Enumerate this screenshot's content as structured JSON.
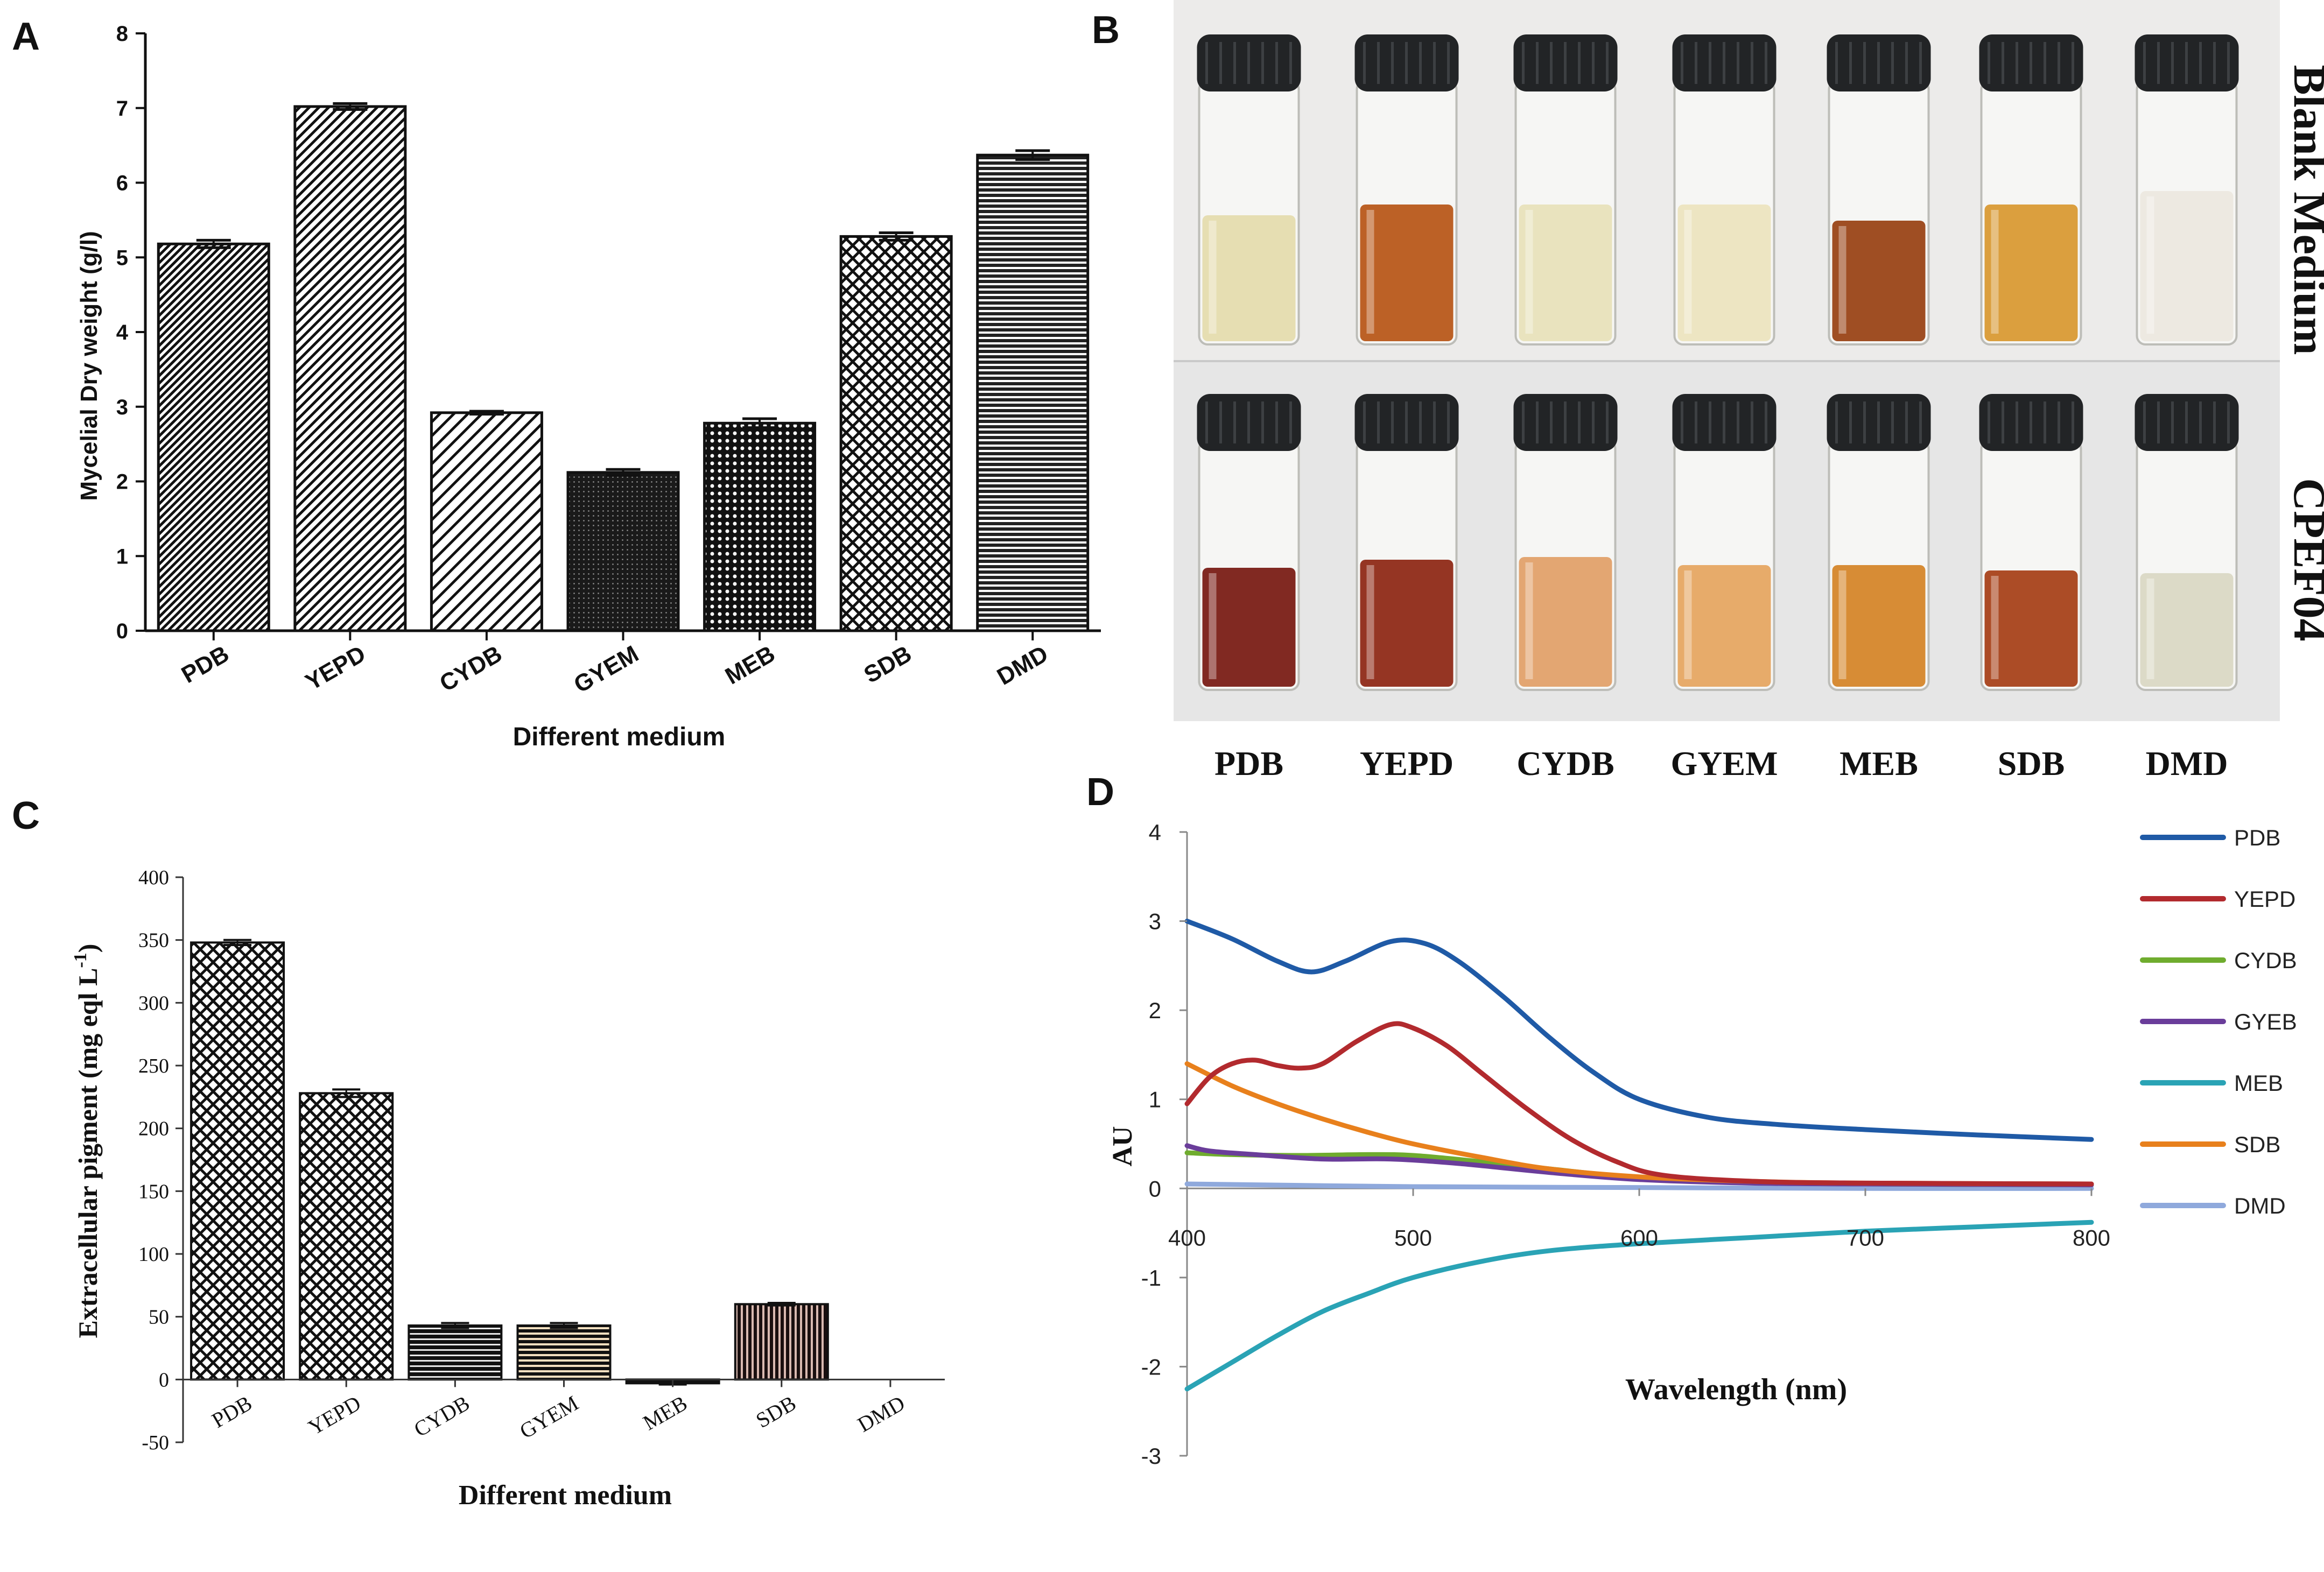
{
  "panels": {
    "A": {
      "label": "A"
    },
    "B": {
      "label": "B"
    },
    "C": {
      "label": "C"
    },
    "D": {
      "label": "D"
    }
  },
  "colors": {
    "pdb": "#1f5aa6",
    "yepd": "#b22a2e",
    "cydb": "#6fac2e",
    "gyeb": "#6a3d9a",
    "meb": "#2aa3b5",
    "sdb": "#e8801c",
    "dmd": "#8fa9dc"
  },
  "chart_data": [
    {
      "id": "A",
      "type": "bar",
      "title": "",
      "xlabel": "Different medium",
      "ylabel": "Mycelial Dry weight (g/l)",
      "categories": [
        "PDB",
        "YEPD",
        "CYDB",
        "GYEM",
        "MEB",
        "SDB",
        "DMD"
      ],
      "values": [
        5.18,
        7.02,
        2.92,
        2.12,
        2.78,
        5.28,
        6.37
      ],
      "errors": [
        0.05,
        0.04,
        0.02,
        0.04,
        0.06,
        0.05,
        0.06
      ],
      "patterns": [
        "diag-down-dense",
        "diag-down-wide",
        "diag-down-medium",
        "dense-dots",
        "dots",
        "crosshatch",
        "horizontal"
      ],
      "ylim": [
        0,
        8
      ],
      "yticks": [
        "0",
        "1",
        "2",
        "3",
        "4",
        "5",
        "6",
        "7",
        "8"
      ]
    },
    {
      "id": "B",
      "type": "photo",
      "row_labels": [
        "Blank Medium",
        "CPEF04"
      ],
      "categories": [
        "PDB",
        "YEPD",
        "CYDB",
        "GYEM",
        "MEB",
        "SDB",
        "DMD"
      ],
      "blank_colors": [
        "#e5dcae",
        "#b8581a",
        "#e8e1ba",
        "#ece4bf",
        "#9a4417",
        "#d99a34",
        "#ece8df"
      ],
      "cpef_colors": [
        "#7a1d16",
        "#8f2a17",
        "#e2a16a",
        "#e6a762",
        "#d5862a",
        "#a8421a",
        "#dad8c4"
      ]
    },
    {
      "id": "C",
      "type": "bar",
      "title": "",
      "xlabel": "Different medium",
      "ylabel": "Extracellular pigment (mg eql L",
      "ylabel_sup": "-1",
      "ylabel_close": ")",
      "categories": [
        "PDB",
        "YEPD",
        "CYDB",
        "GYEM",
        "MEB",
        "SDB",
        "DMD"
      ],
      "values": [
        348,
        228,
        43,
        43,
        -3,
        60,
        0
      ],
      "errors": [
        2,
        3,
        2,
        2,
        1,
        1,
        0
      ],
      "patterns": [
        "crosshatch",
        "crosshatch",
        "horizontal-dark",
        "horizontal-beige",
        "plain-dark",
        "vertical-brown",
        "none"
      ],
      "ylim": [
        -50,
        400
      ],
      "yticks": [
        "-50",
        "0",
        "50",
        "100",
        "150",
        "200",
        "250",
        "300",
        "350",
        "400"
      ]
    },
    {
      "id": "D",
      "type": "line",
      "title": "",
      "xlabel": "Wavelength  (nm)",
      "ylabel": "AU",
      "xlim": [
        400,
        800
      ],
      "ylim": [
        -3,
        4
      ],
      "xticks": [
        "400",
        "500",
        "600",
        "700",
        "800"
      ],
      "yticks": [
        "-3",
        "-2",
        "-1",
        "0",
        "1",
        "2",
        "3",
        "4"
      ],
      "series": [
        {
          "name": "PDB",
          "color": "#1f5aa6",
          "x": [
            400,
            420,
            440,
            455,
            470,
            490,
            505,
            520,
            540,
            560,
            580,
            600,
            630,
            660,
            700,
            750,
            800
          ],
          "y": [
            3.0,
            2.8,
            2.55,
            2.43,
            2.55,
            2.77,
            2.75,
            2.55,
            2.15,
            1.7,
            1.3,
            1.0,
            0.8,
            0.72,
            0.66,
            0.6,
            0.55
          ]
        },
        {
          "name": "YEPD",
          "color": "#b22a2e",
          "x": [
            400,
            410,
            420,
            430,
            440,
            450,
            460,
            475,
            490,
            500,
            515,
            530,
            550,
            570,
            590,
            610,
            650,
            700,
            800
          ],
          "y": [
            0.95,
            1.25,
            1.4,
            1.44,
            1.38,
            1.35,
            1.4,
            1.65,
            1.84,
            1.8,
            1.6,
            1.3,
            0.9,
            0.55,
            0.3,
            0.15,
            0.08,
            0.06,
            0.05
          ]
        },
        {
          "name": "CYDB",
          "color": "#6fac2e",
          "x": [
            400,
            420,
            450,
            480,
            500,
            530,
            560,
            600,
            650,
            700,
            800
          ],
          "y": [
            0.4,
            0.38,
            0.37,
            0.38,
            0.37,
            0.3,
            0.22,
            0.12,
            0.07,
            0.05,
            0.04
          ]
        },
        {
          "name": "GYEB",
          "color": "#6a3d9a",
          "x": [
            400,
            410,
            430,
            460,
            490,
            520,
            560,
            600,
            650,
            700,
            800
          ],
          "y": [
            0.48,
            0.42,
            0.38,
            0.33,
            0.33,
            0.28,
            0.18,
            0.1,
            0.06,
            0.05,
            0.04
          ]
        },
        {
          "name": "MEB",
          "color": "#2aa3b5",
          "x": [
            400,
            420,
            440,
            460,
            480,
            500,
            530,
            560,
            600,
            650,
            700,
            750,
            800
          ],
          "y": [
            -2.25,
            -1.95,
            -1.65,
            -1.38,
            -1.18,
            -1.0,
            -0.82,
            -0.7,
            -0.62,
            -0.55,
            -0.48,
            -0.43,
            -0.38
          ]
        },
        {
          "name": "SDB",
          "color": "#e8801c",
          "x": [
            400,
            420,
            440,
            460,
            480,
            500,
            530,
            560,
            600,
            650,
            700,
            800
          ],
          "y": [
            1.4,
            1.15,
            0.95,
            0.78,
            0.63,
            0.5,
            0.35,
            0.22,
            0.13,
            0.08,
            0.06,
            0.05
          ]
        },
        {
          "name": "DMD",
          "color": "#8fa9dc",
          "x": [
            400,
            500,
            600,
            700,
            800
          ],
          "y": [
            0.05,
            0.02,
            0.01,
            0.0,
            0.0
          ]
        }
      ]
    }
  ]
}
